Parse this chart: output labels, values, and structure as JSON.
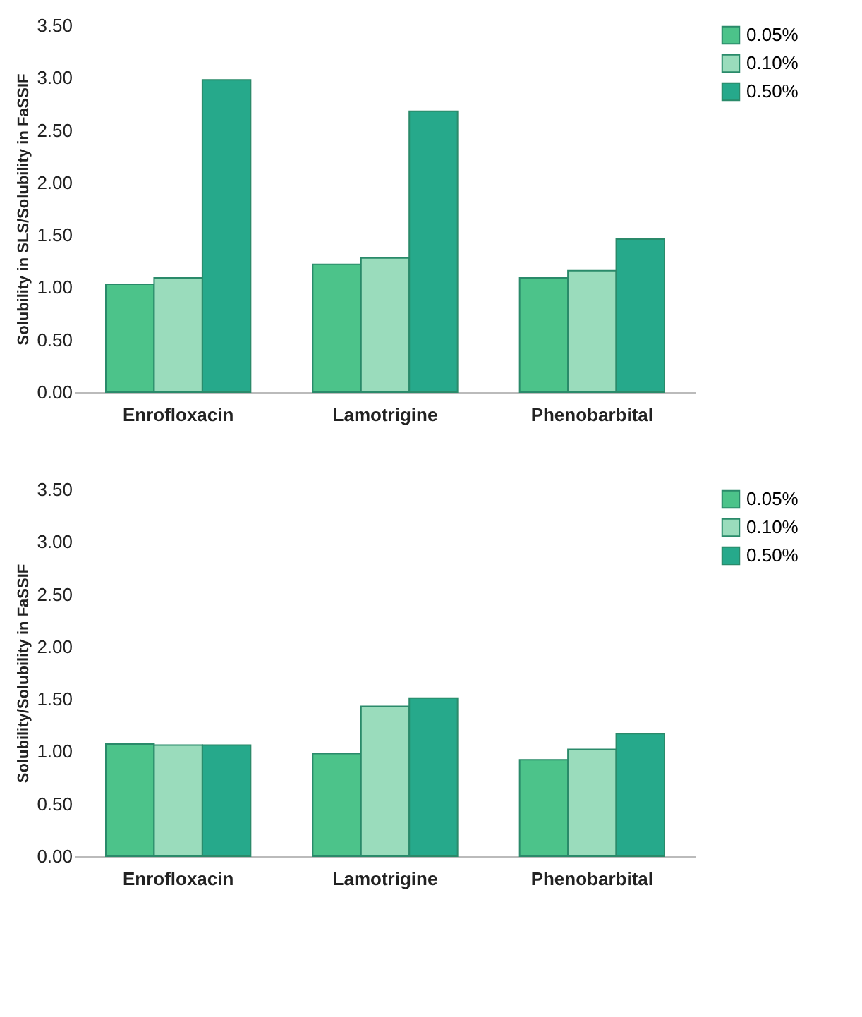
{
  "chart_data": [
    {
      "type": "bar",
      "ylabel": "Solubility in SLS/Solubility in FaSSIF",
      "categories": [
        "Enrofloxacin",
        "Lamotrigine",
        "Phenobarbital"
      ],
      "ylim": [
        0,
        3.5
      ],
      "yticks": [
        {
          "value": 0,
          "label": "0.00"
        },
        {
          "value": 0.5,
          "label": "0.50"
        },
        {
          "value": 1,
          "label": "1.00"
        },
        {
          "value": 1.5,
          "label": "1.50"
        },
        {
          "value": 2,
          "label": "2.00"
        },
        {
          "value": 2.5,
          "label": "2.50"
        },
        {
          "value": 3,
          "label": "3.00"
        },
        {
          "value": 3.5,
          "label": "3.50"
        }
      ],
      "legend": "right",
      "grid": false,
      "series": [
        {
          "name": "0.05%",
          "color": "#4cc38a",
          "values": [
            1.03,
            1.22,
            1.09
          ]
        },
        {
          "name": "0.10%",
          "color": "#9adcbc",
          "values": [
            1.09,
            1.28,
            1.16
          ]
        },
        {
          "name": "0.50%",
          "color": "#26a98b",
          "values": [
            2.98,
            2.68,
            1.46
          ]
        }
      ]
    },
    {
      "type": "bar",
      "ylabel": "Solubility/Solubility in FaSSIF",
      "categories": [
        "Enrofloxacin",
        "Lamotrigine",
        "Phenobarbital"
      ],
      "ylim": [
        0,
        3.5
      ],
      "yticks": [
        {
          "value": 0,
          "label": "0.00"
        },
        {
          "value": 0.5,
          "label": "0.50"
        },
        {
          "value": 1,
          "label": "1.00"
        },
        {
          "value": 1.5,
          "label": "1.50"
        },
        {
          "value": 2,
          "label": "2.00"
        },
        {
          "value": 2.5,
          "label": "2.50"
        },
        {
          "value": 3,
          "label": "3.00"
        },
        {
          "value": 3.5,
          "label": "3.50"
        }
      ],
      "legend": "right",
      "grid": false,
      "series": [
        {
          "name": "0.05%",
          "color": "#4cc38a",
          "values": [
            1.07,
            0.98,
            0.92
          ]
        },
        {
          "name": "0.10%",
          "color": "#9adcbc",
          "values": [
            1.06,
            1.43,
            1.02
          ]
        },
        {
          "name": "0.50%",
          "color": "#26a98b",
          "values": [
            1.06,
            1.51,
            1.17
          ]
        }
      ]
    }
  ]
}
